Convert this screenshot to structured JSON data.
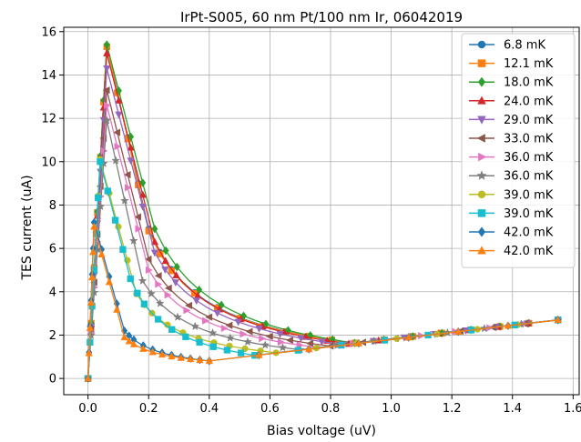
{
  "chart_data": {
    "type": "line",
    "title": "IrPt-S005, 60 nm Pt/100 nm Ir, 06042019",
    "xlabel": "Bias voltage (uV)",
    "ylabel": "TES current (uA)",
    "xlim": [
      -0.08,
      1.62
    ],
    "ylim": [
      -0.75,
      16.2
    ],
    "xticks": [
      0.0,
      0.2,
      0.4,
      0.6,
      0.8,
      1.0,
      1.2,
      1.4,
      1.6
    ],
    "xtick_labels": [
      "0.0",
      "0.2",
      "0.4",
      "0.6",
      "0.8",
      "1.0",
      "1.2",
      "1.4",
      "1.6"
    ],
    "yticks": [
      0,
      2,
      4,
      6,
      8,
      10,
      12,
      14,
      16
    ],
    "ytick_labels": [
      "0",
      "2",
      "4",
      "6",
      "8",
      "10",
      "12",
      "14",
      "16"
    ],
    "grid": true,
    "legend_position": "top-right",
    "series": [
      {
        "name": "6.8 mK",
        "color": "#1f77b4",
        "marker": "circle",
        "peak_x": 0.062,
        "peak_y": 15.35
      },
      {
        "name": "12.1 mK",
        "color": "#ff7f0e",
        "marker": "square",
        "peak_x": 0.062,
        "peak_y": 15.3
      },
      {
        "name": "18.0 mK",
        "color": "#2ca02c",
        "marker": "diamond",
        "peak_x": 0.062,
        "peak_y": 15.4
      },
      {
        "name": "24.0 mK",
        "color": "#d62728",
        "marker": "triangle-up",
        "peak_x": 0.062,
        "peak_y": 15.0
      },
      {
        "name": "29.0 mK",
        "color": "#9467bd",
        "marker": "triangle-down",
        "peak_x": 0.062,
        "peak_y": 14.3
      },
      {
        "name": "33.0 mK",
        "color": "#8c564b",
        "marker": "triangle-left",
        "peak_x": 0.062,
        "peak_y": 13.3
      },
      {
        "name": "36.0 mK",
        "color": "#e377c2",
        "marker": "triangle-right",
        "peak_x": 0.062,
        "peak_y": 12.6
      },
      {
        "name": "36.0 mK",
        "color": "#7f7f7f",
        "marker": "star",
        "peak_x": 0.062,
        "peak_y": 11.9
      },
      {
        "name": "39.0 mK",
        "color": "#bcbd22",
        "marker": "circle",
        "peak_x": 0.04,
        "peak_y": 10.1
      },
      {
        "name": "39.0 mK",
        "color": "#17becf",
        "marker": "square",
        "peak_x": 0.04,
        "peak_y": 10.0
      },
      {
        "name": "42.0 mK",
        "color": "#1f77b4",
        "marker": "diamond",
        "peak_x": 0.02,
        "peak_y": 7.2
      },
      {
        "name": "42.0 mK",
        "color": "#ff7f0e",
        "marker": "triangle-up",
        "peak_x": 0.02,
        "peak_y": 7.0
      }
    ],
    "series_values": [
      {
        "transition_x": 0.2,
        "transition_y": 6.9,
        "merge_x": 0.88,
        "end_x": 1.55,
        "end_y": 2.7
      },
      {
        "transition_x": 0.2,
        "transition_y": 6.8,
        "merge_x": 0.88,
        "end_x": 1.55,
        "end_y": 2.7
      },
      {
        "transition_x": 0.22,
        "transition_y": 6.9,
        "merge_x": 0.88,
        "end_x": 1.55,
        "end_y": 2.7
      },
      {
        "transition_x": 0.22,
        "transition_y": 6.3,
        "merge_x": 0.86,
        "end_x": 1.55,
        "end_y": 2.7
      },
      {
        "transition_x": 0.22,
        "transition_y": 5.8,
        "merge_x": 0.84,
        "end_x": 1.55,
        "end_y": 2.7
      },
      {
        "transition_x": 0.2,
        "transition_y": 5.5,
        "merge_x": 0.8,
        "end_x": 1.55,
        "end_y": 2.7
      },
      {
        "transition_x": 0.2,
        "transition_y": 5.0,
        "merge_x": 0.76,
        "end_x": 1.55,
        "end_y": 2.7
      },
      {
        "transition_x": 0.18,
        "transition_y": 4.5,
        "merge_x": 0.7,
        "end_x": 1.55,
        "end_y": 2.7
      },
      {
        "transition_x": 0.16,
        "transition_y": 3.9,
        "merge_x": 0.62,
        "end_x": 1.55,
        "end_y": 2.7
      },
      {
        "transition_x": 0.14,
        "transition_y": 4.6,
        "merge_x": 0.55,
        "end_x": 1.55,
        "end_y": 2.7
      },
      {
        "transition_x": 0.12,
        "transition_y": 2.2,
        "merge_x": 0.4,
        "end_x": 1.55,
        "end_y": 2.7
      },
      {
        "transition_x": 0.12,
        "transition_y": 1.9,
        "merge_x": 0.4,
        "end_x": 1.55,
        "end_y": 2.7
      }
    ]
  }
}
